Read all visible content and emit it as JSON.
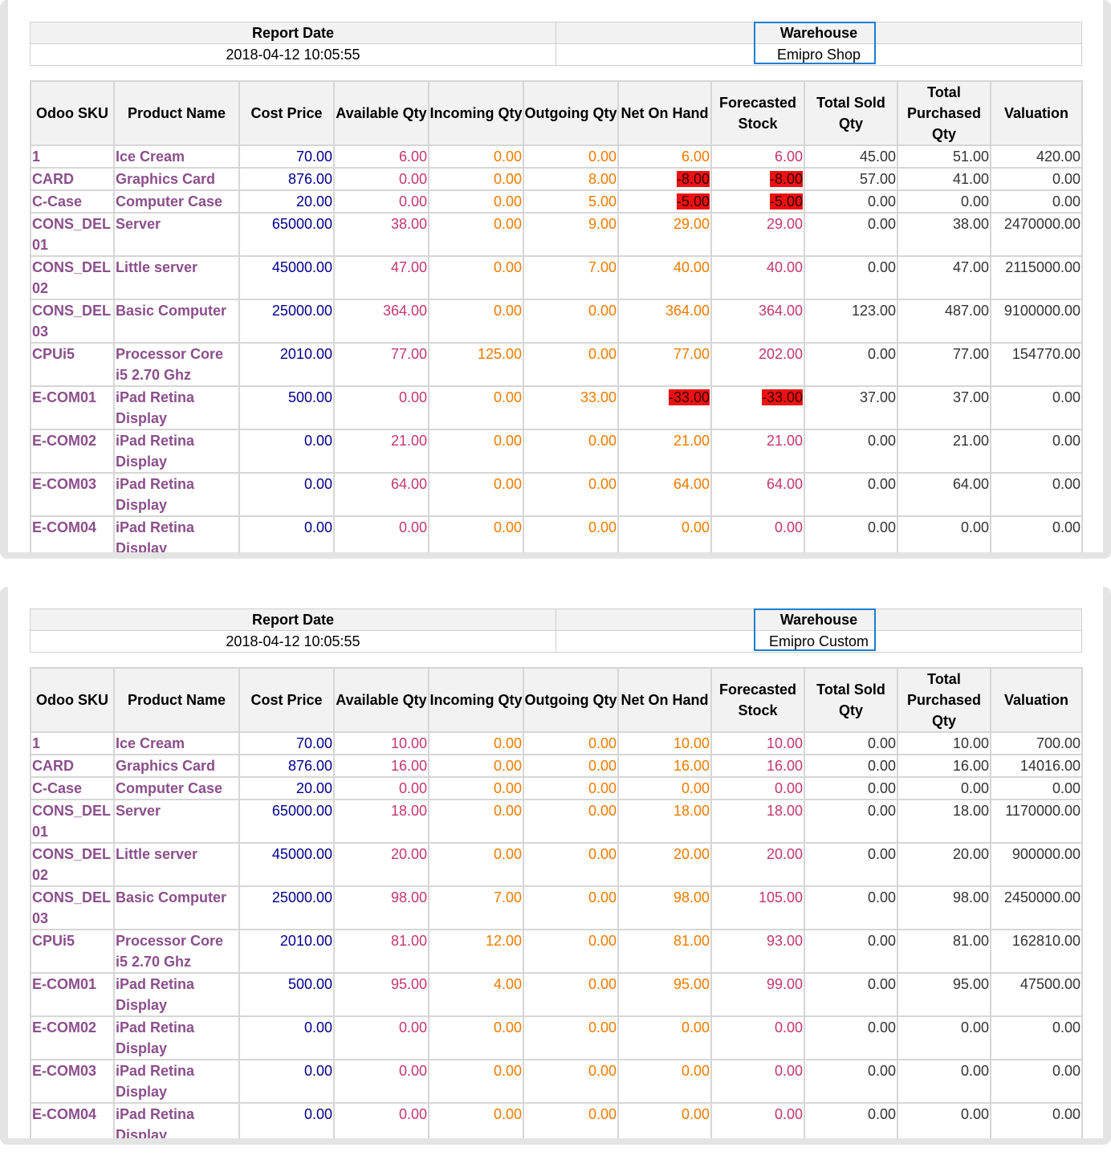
{
  "columns": [
    "Odoo SKU",
    "Product Name",
    "Cost Price",
    "Available Qty",
    "Incoming Qty",
    "Outgoing Qty",
    "Net On Hand",
    "Forecasted Stock",
    "Total Sold Qty",
    "Total Purchased Qty",
    "Valuation"
  ],
  "colors": {
    "sku": "#8b4f8b",
    "cost": "#00008b",
    "avail": "#c3386c",
    "incoming": "#ef7b00",
    "negative_highlight": "#ee1111",
    "warehouse_frame": "#1a7ed3"
  },
  "reports": [
    {
      "report_date_label": "Report Date",
      "report_date": "2018-04-12 10:05:55",
      "warehouse_label": "Warehouse",
      "warehouse": "Emipro Shop",
      "rows": [
        {
          "sku": "1",
          "name": "Ice Cream",
          "cost": "70.00",
          "avail": "6.00",
          "inc": "0.00",
          "out": "0.00",
          "net": "6.00",
          "fore": "6.00",
          "sold": "45.00",
          "purch": "51.00",
          "val": "420.00"
        },
        {
          "sku": "CARD",
          "name": "Graphics Card",
          "cost": "876.00",
          "avail": "0.00",
          "inc": "0.00",
          "out": "8.00",
          "net": "-8.00",
          "fore": "-8.00",
          "sold": "57.00",
          "purch": "41.00",
          "val": "0.00"
        },
        {
          "sku": "C-Case",
          "name": "Computer Case",
          "cost": "20.00",
          "avail": "0.00",
          "inc": "0.00",
          "out": "5.00",
          "net": "-5.00",
          "fore": "-5.00",
          "sold": "0.00",
          "purch": "0.00",
          "val": "0.00"
        },
        {
          "sku": "CONS_DEL 01",
          "name": "Server",
          "cost": "65000.00",
          "avail": "38.00",
          "inc": "0.00",
          "out": "9.00",
          "net": "29.00",
          "fore": "29.00",
          "sold": "0.00",
          "purch": "38.00",
          "val": "2470000.00"
        },
        {
          "sku": "CONS_DEL 02",
          "name": "Little server",
          "cost": "45000.00",
          "avail": "47.00",
          "inc": "0.00",
          "out": "7.00",
          "net": "40.00",
          "fore": "40.00",
          "sold": "0.00",
          "purch": "47.00",
          "val": "2115000.00"
        },
        {
          "sku": "CONS_DEL 03",
          "name": "Basic Computer",
          "cost": "25000.00",
          "avail": "364.00",
          "inc": "0.00",
          "out": "0.00",
          "net": "364.00",
          "fore": "364.00",
          "sold": "123.00",
          "purch": "487.00",
          "val": "9100000.00"
        },
        {
          "sku": "CPUi5",
          "name": "Processor Core i5 2.70 Ghz",
          "cost": "2010.00",
          "avail": "77.00",
          "inc": "125.00",
          "out": "0.00",
          "net": "77.00",
          "fore": "202.00",
          "sold": "0.00",
          "purch": "77.00",
          "val": "154770.00"
        },
        {
          "sku": "E-COM01",
          "name": "iPad Retina Display",
          "cost": "500.00",
          "avail": "0.00",
          "inc": "0.00",
          "out": "33.00",
          "net": "-33.00",
          "fore": "-33.00",
          "sold": "37.00",
          "purch": "37.00",
          "val": "0.00"
        },
        {
          "sku": "E-COM02",
          "name": "iPad Retina Display",
          "cost": "0.00",
          "avail": "21.00",
          "inc": "0.00",
          "out": "0.00",
          "net": "21.00",
          "fore": "21.00",
          "sold": "0.00",
          "purch": "21.00",
          "val": "0.00"
        },
        {
          "sku": "E-COM03",
          "name": "iPad Retina Display",
          "cost": "0.00",
          "avail": "64.00",
          "inc": "0.00",
          "out": "0.00",
          "net": "64.00",
          "fore": "64.00",
          "sold": "0.00",
          "purch": "64.00",
          "val": "0.00"
        },
        {
          "sku": "E-COM04",
          "name": "iPad Retina Display",
          "cost": "0.00",
          "avail": "0.00",
          "inc": "0.00",
          "out": "0.00",
          "net": "0.00",
          "fore": "0.00",
          "sold": "0.00",
          "purch": "0.00",
          "val": "0.00"
        }
      ]
    },
    {
      "report_date_label": "Report Date",
      "report_date": "2018-04-12 10:05:55",
      "warehouse_label": "Warehouse",
      "warehouse": "Emipro Custom",
      "rows": [
        {
          "sku": "1",
          "name": "Ice Cream",
          "cost": "70.00",
          "avail": "10.00",
          "inc": "0.00",
          "out": "0.00",
          "net": "10.00",
          "fore": "10.00",
          "sold": "0.00",
          "purch": "10.00",
          "val": "700.00"
        },
        {
          "sku": "CARD",
          "name": "Graphics Card",
          "cost": "876.00",
          "avail": "16.00",
          "inc": "0.00",
          "out": "0.00",
          "net": "16.00",
          "fore": "16.00",
          "sold": "0.00",
          "purch": "16.00",
          "val": "14016.00"
        },
        {
          "sku": "C-Case",
          "name": "Computer Case",
          "cost": "20.00",
          "avail": "0.00",
          "inc": "0.00",
          "out": "0.00",
          "net": "0.00",
          "fore": "0.00",
          "sold": "0.00",
          "purch": "0.00",
          "val": "0.00"
        },
        {
          "sku": "CONS_DEL 01",
          "name": "Server",
          "cost": "65000.00",
          "avail": "18.00",
          "inc": "0.00",
          "out": "0.00",
          "net": "18.00",
          "fore": "18.00",
          "sold": "0.00",
          "purch": "18.00",
          "val": "1170000.00"
        },
        {
          "sku": "CONS_DEL 02",
          "name": "Little server",
          "cost": "45000.00",
          "avail": "20.00",
          "inc": "0.00",
          "out": "0.00",
          "net": "20.00",
          "fore": "20.00",
          "sold": "0.00",
          "purch": "20.00",
          "val": "900000.00"
        },
        {
          "sku": "CONS_DEL 03",
          "name": "Basic Computer",
          "cost": "25000.00",
          "avail": "98.00",
          "inc": "7.00",
          "out": "0.00",
          "net": "98.00",
          "fore": "105.00",
          "sold": "0.00",
          "purch": "98.00",
          "val": "2450000.00"
        },
        {
          "sku": "CPUi5",
          "name": "Processor Core i5 2.70 Ghz",
          "cost": "2010.00",
          "avail": "81.00",
          "inc": "12.00",
          "out": "0.00",
          "net": "81.00",
          "fore": "93.00",
          "sold": "0.00",
          "purch": "81.00",
          "val": "162810.00"
        },
        {
          "sku": "E-COM01",
          "name": "iPad Retina Display",
          "cost": "500.00",
          "avail": "95.00",
          "inc": "4.00",
          "out": "0.00",
          "net": "95.00",
          "fore": "99.00",
          "sold": "0.00",
          "purch": "95.00",
          "val": "47500.00"
        },
        {
          "sku": "E-COM02",
          "name": "iPad Retina Display",
          "cost": "0.00",
          "avail": "0.00",
          "inc": "0.00",
          "out": "0.00",
          "net": "0.00",
          "fore": "0.00",
          "sold": "0.00",
          "purch": "0.00",
          "val": "0.00"
        },
        {
          "sku": "E-COM03",
          "name": "iPad Retina Display",
          "cost": "0.00",
          "avail": "0.00",
          "inc": "0.00",
          "out": "0.00",
          "net": "0.00",
          "fore": "0.00",
          "sold": "0.00",
          "purch": "0.00",
          "val": "0.00"
        },
        {
          "sku": "E-COM04",
          "name": "iPad Retina Display",
          "cost": "0.00",
          "avail": "0.00",
          "inc": "0.00",
          "out": "0.00",
          "net": "0.00",
          "fore": "0.00",
          "sold": "0.00",
          "purch": "0.00",
          "val": "0.00"
        }
      ]
    }
  ]
}
